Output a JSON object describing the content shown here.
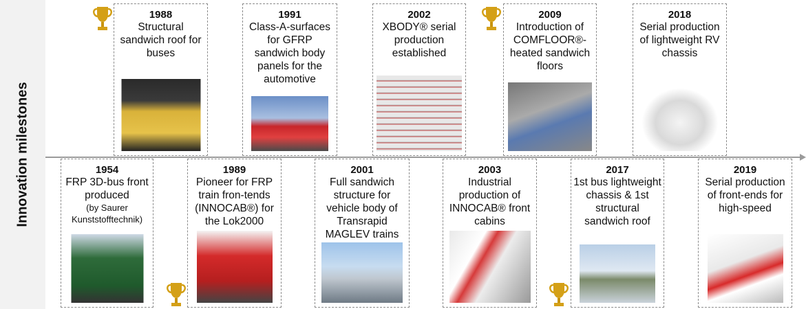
{
  "side_label": "Innovation milestones",
  "milestones_top": [
    {
      "year": "1988",
      "description": "Structural sandwich roof for buses"
    },
    {
      "year": "1991",
      "description": "Class-A-surfaces for GFRP sandwich body panels for the automotive"
    },
    {
      "year": "2002",
      "description": "XBODY® serial production established"
    },
    {
      "year": "2009",
      "description": "Introduction of COMFLOOR®-heated sandwich floors"
    },
    {
      "year": "2018",
      "description": "Serial production of lightweight RV chassis"
    }
  ],
  "milestones_bottom": [
    {
      "year": "1954",
      "description": "FRP 3D-bus front produced",
      "note": "(by Saurer Kunststofftechnik)"
    },
    {
      "year": "1989",
      "description": "Pioneer for FRP train fron-tends (INNOCAB®) for the Lok2000"
    },
    {
      "year": "2001",
      "description": "Full sandwich structure for vehicle body of Transrapid MAGLEV trains"
    },
    {
      "year": "2003",
      "description": "Industrial production of INNOCAB® front cabins"
    },
    {
      "year": "2017",
      "description": "1st bus lightweight chassis & 1st structural sandwich roof"
    },
    {
      "year": "2019",
      "description": "Serial production of front-ends for high-speed"
    }
  ]
}
